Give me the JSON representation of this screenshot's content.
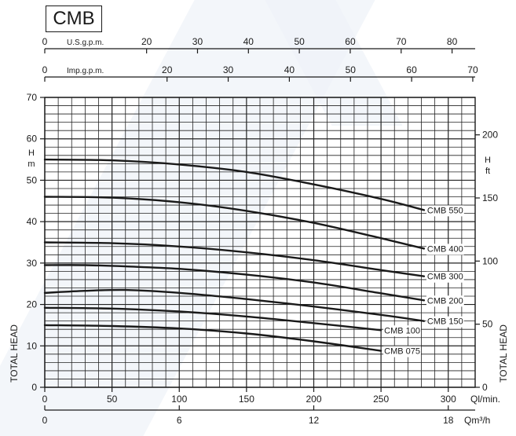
{
  "title": "CMB",
  "colors": {
    "line": "#1a1a1a",
    "grid": "#222222",
    "watermark": "#e8edf5"
  },
  "chart_data": {
    "type": "line",
    "title": "CMB",
    "xlabel": "Ql/min.",
    "ylabel_left": "TOTAL HEAD",
    "ylabel_right": "TOTAL HEAD",
    "left_unit": "H m",
    "right_unit": "H ft",
    "grid": true,
    "xlim": [
      0,
      320
    ],
    "ylim": [
      0,
      70
    ],
    "x_ticks": [
      "0",
      "50",
      "100",
      "150",
      "200",
      "250",
      "300"
    ],
    "y_ticks_left": [
      "0",
      "10",
      "20",
      "30",
      "40",
      "50",
      "60",
      "70"
    ],
    "y_ticks_right": [
      "0",
      "50",
      "100",
      "150",
      "200"
    ],
    "secondary_axes": [
      {
        "label": "U.S.g.p.m.",
        "position": "top-1",
        "ticks": [
          "0",
          "20",
          "30",
          "40",
          "50",
          "60",
          "70",
          "80"
        ]
      },
      {
        "label": "Imp.g.p.m.",
        "position": "top-2",
        "ticks": [
          "0",
          "20",
          "30",
          "40",
          "50",
          "60",
          "70"
        ]
      },
      {
        "label": "Qm³/h",
        "position": "bottom-2",
        "ticks": [
          "0",
          "6",
          "12",
          "18"
        ]
      }
    ],
    "series": [
      {
        "name": "CMB 550",
        "x": [
          0,
          50,
          100,
          150,
          200,
          250,
          282
        ],
        "y": [
          55,
          54.8,
          53.8,
          52,
          49,
          45.5,
          42.8
        ]
      },
      {
        "name": "CMB 400",
        "x": [
          0,
          50,
          100,
          150,
          200,
          250,
          282
        ],
        "y": [
          46,
          45.8,
          44.7,
          42.6,
          39.7,
          36,
          33.5
        ]
      },
      {
        "name": "CMB 300",
        "x": [
          0,
          50,
          100,
          150,
          200,
          250,
          282
        ],
        "y": [
          35,
          34.8,
          34,
          32.6,
          30.7,
          28.3,
          26.8
        ]
      },
      {
        "name": "CMB 200",
        "x": [
          0,
          30,
          60,
          100,
          150,
          200,
          250,
          282
        ],
        "y": [
          29.5,
          29.5,
          29.2,
          28.6,
          27.2,
          25.3,
          22.7,
          21
        ]
      },
      {
        "name": "CMB 150",
        "x": [
          0,
          30,
          60,
          100,
          150,
          200,
          250,
          282
        ],
        "y": [
          22.8,
          23.3,
          23.5,
          22.8,
          21.3,
          19.5,
          17.5,
          16
        ]
      },
      {
        "name": "CMB 100",
        "x": [
          0,
          50,
          100,
          150,
          200,
          250
        ],
        "y": [
          19.2,
          19,
          18.3,
          17.1,
          15.5,
          13.8
        ]
      },
      {
        "name": "CMB 075",
        "x": [
          0,
          50,
          100,
          150,
          200,
          250
        ],
        "y": [
          15,
          14.8,
          14.2,
          13,
          11.1,
          8.8
        ]
      }
    ]
  }
}
